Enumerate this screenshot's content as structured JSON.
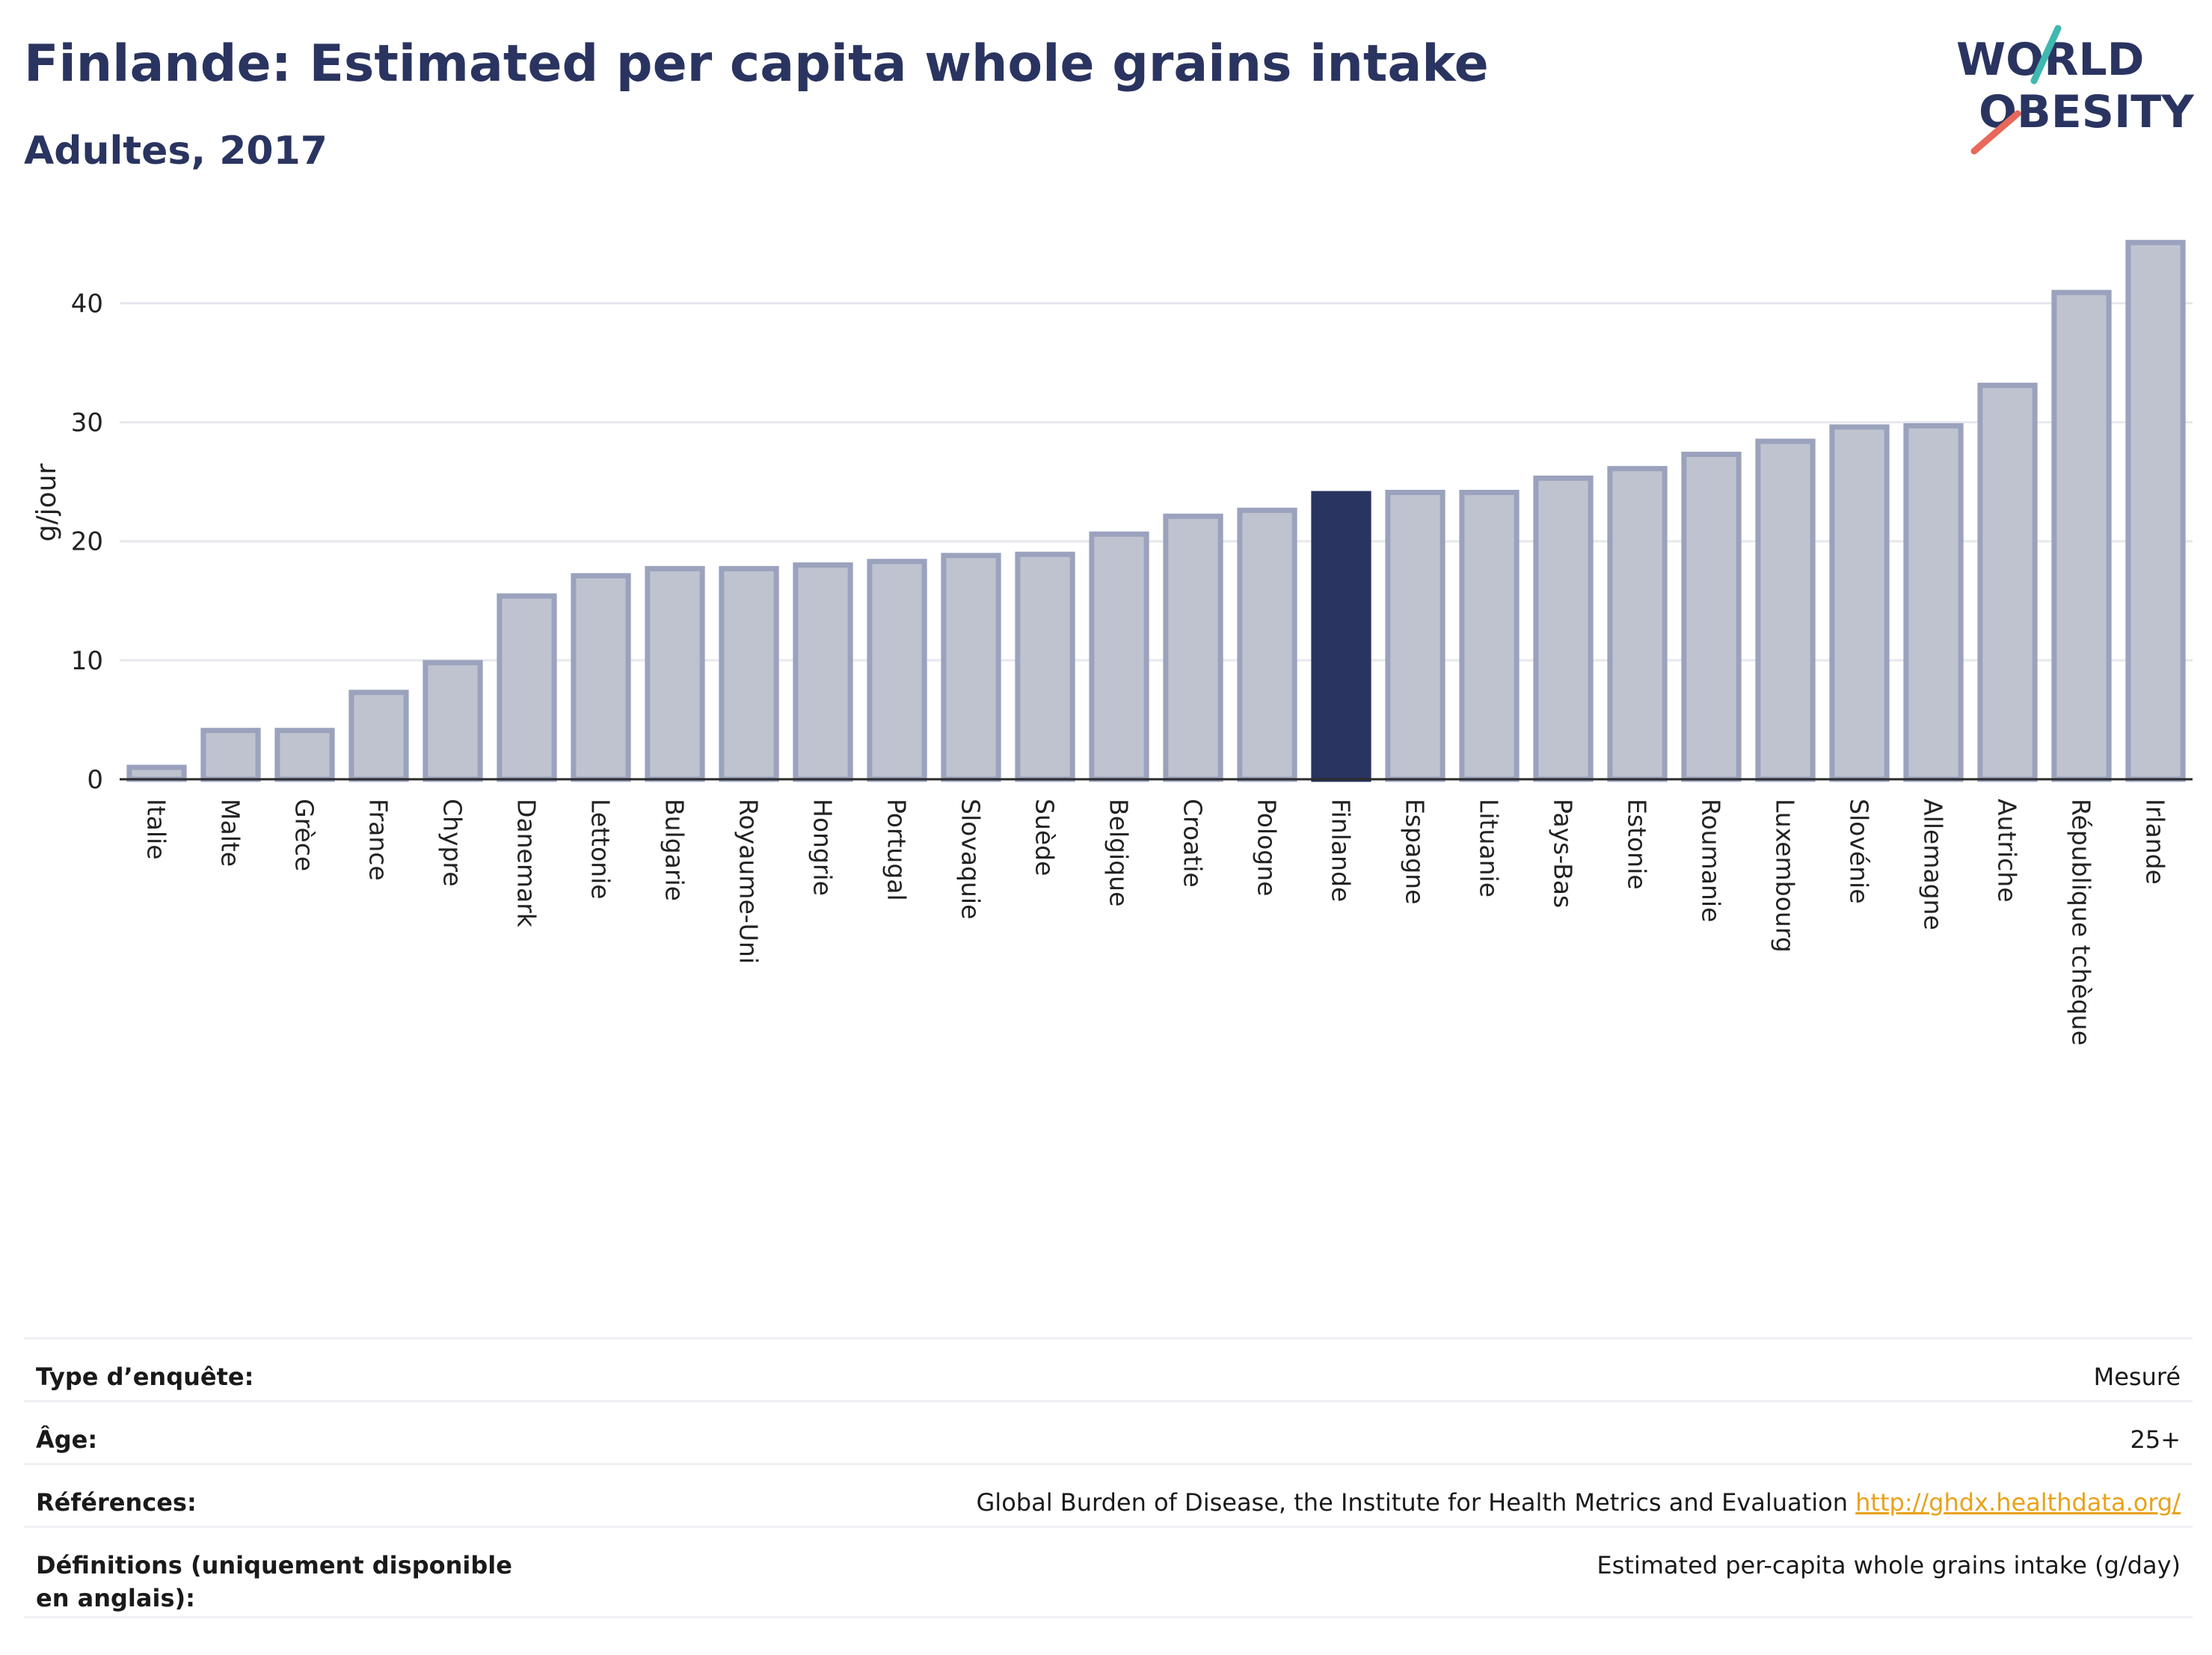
{
  "header": {
    "title": "Finlande: Estimated per capita whole grains intake",
    "subtitle": "Adultes, 2017"
  },
  "logo": {
    "line1": "WORLD",
    "line2": "OBESITY"
  },
  "chart_data": {
    "type": "bar",
    "ylabel": "g/jour",
    "ylim": [
      0,
      46.5
    ],
    "yticks": [
      0,
      10,
      20,
      30,
      40
    ],
    "grid": true,
    "highlight": "Finlande",
    "categories": [
      "Italie",
      "Malte",
      "Grèce",
      "France",
      "Chypre",
      "Danemark",
      "Lettonie",
      "Bulgarie",
      "Royaume-Uni",
      "Hongrie",
      "Portugal",
      "Slovaquie",
      "Suède",
      "Belgique",
      "Croatie",
      "Pologne",
      "Finlande",
      "Espagne",
      "Lituanie",
      "Pays-Bas",
      "Estonie",
      "Roumanie",
      "Luxembourg",
      "Slovénie",
      "Allemagne",
      "Autriche",
      "République tchèque",
      "Irlande"
    ],
    "values": [
      1.0,
      4.1,
      4.1,
      7.3,
      9.8,
      15.4,
      17.1,
      17.7,
      17.7,
      18.0,
      18.3,
      18.8,
      18.9,
      20.6,
      22.1,
      22.6,
      24.0,
      24.1,
      24.1,
      25.3,
      26.1,
      27.3,
      28.4,
      29.6,
      29.7,
      33.1,
      40.9,
      45.1
    ],
    "colors": {
      "bar": "#bfc3d0",
      "bar_border": "#9aa2bd",
      "highlight": "#2a3460",
      "grid": "#e6e8ee",
      "axis": "#2a2a2a"
    }
  },
  "info": {
    "rows": [
      {
        "label": "Type d’enquête:",
        "value": "Mesuré"
      },
      {
        "label": "Âge:",
        "value": "25+"
      },
      {
        "label": "Références:",
        "value": "Global Burden of Disease, the Institute for Health Metrics and Evaluation",
        "link": "http://ghdx.healthdata.org/"
      },
      {
        "label": "Définitions (uniquement disponible en anglais):",
        "value": "Estimated per-capita whole grains intake (g/day)"
      }
    ]
  }
}
